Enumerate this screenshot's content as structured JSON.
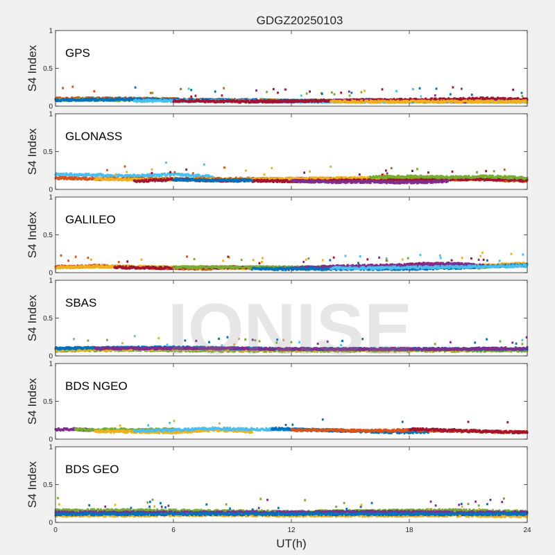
{
  "figure": {
    "title": "GDGZ20250103",
    "xlabel": "UT(h)",
    "watermark": "IONISE"
  },
  "colors": {
    "background": "#f0f0f0",
    "axes_face": "#ffffff",
    "palette": [
      "#0072BD",
      "#D95319",
      "#EDB120",
      "#7E2F8E",
      "#77AC30",
      "#4DBEEE",
      "#A2142F"
    ]
  },
  "chart_data": [
    {
      "type": "scatter",
      "panel_label": "GPS",
      "ylabel": "S4 Index",
      "xlim": [
        0,
        24
      ],
      "ylim": [
        0,
        1
      ],
      "xticks": [
        0,
        6,
        12,
        18,
        24
      ],
      "yticks": [
        0,
        0.5,
        1
      ],
      "series": [
        {
          "color": "#D95319",
          "x": [
            0,
            2,
            4,
            6,
            8,
            10,
            12
          ],
          "y": [
            0.1,
            0.1,
            0.1,
            0.09,
            0.08,
            0.08,
            0.07
          ]
        },
        {
          "color": "#77AC30",
          "x": [
            0,
            1.5,
            3,
            5,
            8,
            12,
            16,
            20,
            24
          ],
          "y": [
            0.08,
            0.09,
            0.08,
            0.09,
            0.07,
            0.07,
            0.07,
            0.07,
            0.07
          ]
        },
        {
          "color": "#0072BD",
          "x": [
            0,
            4,
            8,
            12,
            16,
            20,
            24
          ],
          "y": [
            0.08,
            0.09,
            0.08,
            0.07,
            0.06,
            0.07,
            0.06
          ]
        },
        {
          "color": "#4DBEEE",
          "x": [
            4,
            8,
            12,
            16,
            20,
            24
          ],
          "y": [
            0.07,
            0.07,
            0.06,
            0.06,
            0.06,
            0.06
          ]
        },
        {
          "color": "#7E2F8E",
          "x": [
            10,
            13,
            16,
            18,
            21
          ],
          "y": [
            0.06,
            0.07,
            0.08,
            0.07,
            0.06
          ]
        },
        {
          "color": "#A2142F",
          "x": [
            6,
            10,
            20,
            22,
            24
          ],
          "y": [
            0.07,
            0.06,
            0.09,
            0.1,
            0.09
          ]
        },
        {
          "color": "#EDB120",
          "x": [
            14,
            16,
            18,
            20,
            24
          ],
          "y": [
            0.06,
            0.06,
            0.06,
            0.06,
            0.06
          ]
        }
      ]
    },
    {
      "type": "scatter",
      "panel_label": "GLONASS",
      "ylabel": "S4 Index",
      "xlim": [
        0,
        24
      ],
      "ylim": [
        0,
        1
      ],
      "xticks": [
        0,
        6,
        12,
        18,
        24
      ],
      "yticks": [
        0,
        0.5,
        1
      ],
      "series": [
        {
          "color": "#4DBEEE",
          "x": [
            0,
            2,
            4,
            6,
            8
          ],
          "y": [
            0.2,
            0.19,
            0.18,
            0.2,
            0.17
          ]
        },
        {
          "color": "#D95319",
          "x": [
            0,
            2,
            4,
            8,
            12,
            16,
            22,
            24
          ],
          "y": [
            0.15,
            0.14,
            0.14,
            0.14,
            0.14,
            0.14,
            0.13,
            0.11
          ]
        },
        {
          "color": "#EDB120",
          "x": [
            2,
            4,
            8,
            12,
            16,
            18
          ],
          "y": [
            0.14,
            0.13,
            0.13,
            0.14,
            0.15,
            0.13
          ]
        },
        {
          "color": "#A2142F",
          "x": [
            4,
            6,
            8,
            12,
            20,
            22,
            24
          ],
          "y": [
            0.11,
            0.13,
            0.12,
            0.11,
            0.13,
            0.14,
            0.12
          ]
        },
        {
          "color": "#0072BD",
          "x": [
            6,
            8,
            10
          ],
          "y": [
            0.13,
            0.12,
            0.12
          ]
        },
        {
          "color": "#7E2F8E",
          "x": [
            12,
            14,
            16,
            18,
            20
          ],
          "y": [
            0.11,
            0.1,
            0.1,
            0.09,
            0.11
          ]
        },
        {
          "color": "#77AC30",
          "x": [
            16,
            18,
            20,
            22,
            24
          ],
          "y": [
            0.16,
            0.17,
            0.16,
            0.17,
            0.15
          ]
        }
      ]
    },
    {
      "type": "scatter",
      "panel_label": "GALILEO",
      "ylabel": "S4 Index",
      "xlim": [
        0,
        24
      ],
      "ylim": [
        0,
        1
      ],
      "xticks": [
        0,
        6,
        12,
        18,
        24
      ],
      "yticks": [
        0,
        0.5,
        1
      ],
      "series": [
        {
          "color": "#D95319",
          "x": [
            0,
            1,
            2,
            3,
            4,
            6,
            8
          ],
          "y": [
            0.08,
            0.08,
            0.09,
            0.08,
            0.07,
            0.06,
            0.05
          ]
        },
        {
          "color": "#EDB120",
          "x": [
            0,
            2,
            4,
            6,
            10,
            12,
            20,
            24
          ],
          "y": [
            0.07,
            0.08,
            0.08,
            0.07,
            0.06,
            0.06,
            0.08,
            0.12
          ]
        },
        {
          "color": "#A2142F",
          "x": [
            3,
            6,
            9,
            12,
            16,
            19,
            22
          ],
          "y": [
            0.07,
            0.06,
            0.07,
            0.06,
            0.07,
            0.12,
            0.08
          ]
        },
        {
          "color": "#77AC30",
          "x": [
            6,
            10,
            14,
            18,
            22
          ],
          "y": [
            0.07,
            0.07,
            0.07,
            0.07,
            0.07
          ]
        },
        {
          "color": "#7E2F8E",
          "x": [
            12,
            14,
            16,
            18,
            20,
            22
          ],
          "y": [
            0.06,
            0.08,
            0.09,
            0.1,
            0.12,
            0.09
          ]
        },
        {
          "color": "#0072BD",
          "x": [
            10,
            14,
            18,
            20,
            24
          ],
          "y": [
            0.05,
            0.05,
            0.05,
            0.06,
            0.1
          ]
        },
        {
          "color": "#4DBEEE",
          "x": [
            14,
            16,
            18,
            22,
            24
          ],
          "y": [
            0.06,
            0.06,
            0.07,
            0.08,
            0.09
          ]
        }
      ]
    },
    {
      "type": "scatter",
      "panel_label": "SBAS",
      "ylabel": "S4 Index",
      "xlim": [
        0,
        24
      ],
      "ylim": [
        0,
        1
      ],
      "xticks": [
        0,
        6,
        12,
        18,
        24
      ],
      "yticks": [
        0,
        0.5,
        1
      ],
      "series": [
        {
          "color": "#4DBEEE",
          "x": [
            0,
            4,
            8,
            12,
            16,
            20,
            24
          ],
          "y": [
            0.09,
            0.1,
            0.09,
            0.08,
            0.08,
            0.08,
            0.08
          ]
        },
        {
          "color": "#77AC30",
          "x": [
            0,
            4,
            8,
            12,
            16,
            20,
            24
          ],
          "y": [
            0.07,
            0.08,
            0.07,
            0.07,
            0.07,
            0.07,
            0.07
          ]
        },
        {
          "color": "#EDB120",
          "x": [
            0,
            6,
            12,
            18,
            24
          ],
          "y": [
            0.08,
            0.09,
            0.08,
            0.08,
            0.09
          ]
        },
        {
          "color": "#0072BD",
          "x": [
            0,
            6,
            12,
            18,
            24
          ],
          "y": [
            0.1,
            0.11,
            0.09,
            0.09,
            0.09
          ]
        },
        {
          "color": "#7E2F8E",
          "x": [
            2,
            8,
            14,
            20,
            24
          ],
          "y": [
            0.1,
            0.1,
            0.09,
            0.09,
            0.1
          ]
        }
      ]
    },
    {
      "type": "scatter",
      "panel_label": "BDS NGEO",
      "ylabel": "S4 Index",
      "xlim": [
        0,
        24
      ],
      "ylim": [
        0,
        1
      ],
      "xticks": [
        0,
        6,
        12,
        18,
        24
      ],
      "yticks": [
        0,
        0.5,
        1
      ],
      "series": [
        {
          "color": "#7E2F8E",
          "x": [
            0,
            1,
            2
          ],
          "y": [
            0.13,
            0.13,
            0.12
          ]
        },
        {
          "color": "#77AC30",
          "x": [
            1,
            2,
            3,
            4,
            6
          ],
          "y": [
            0.13,
            0.12,
            0.13,
            0.12,
            0.13
          ]
        },
        {
          "color": "#EDB120",
          "x": [
            2,
            4,
            6,
            8,
            10
          ],
          "y": [
            0.1,
            0.1,
            0.09,
            0.12,
            0.1
          ]
        },
        {
          "color": "#4DBEEE",
          "x": [
            4,
            6,
            8,
            10,
            12
          ],
          "y": [
            0.11,
            0.12,
            0.14,
            0.13,
            0.13
          ]
        },
        {
          "color": "#0072BD",
          "x": [
            11,
            12,
            16,
            18,
            19
          ],
          "y": [
            0.14,
            0.13,
            0.1,
            0.09,
            0.1
          ]
        },
        {
          "color": "#D95319",
          "x": [
            12,
            14,
            16,
            18,
            20,
            24
          ],
          "y": [
            0.12,
            0.12,
            0.11,
            0.12,
            0.11,
            0.09
          ]
        },
        {
          "color": "#A2142F",
          "x": [
            18,
            20,
            22,
            24
          ],
          "y": [
            0.13,
            0.12,
            0.1,
            0.09
          ]
        }
      ]
    },
    {
      "type": "scatter",
      "panel_label": "BDS GEO",
      "ylabel": "S4 Index",
      "xlim": [
        0,
        24
      ],
      "ylim": [
        0,
        1
      ],
      "xticks": [
        0,
        6,
        12,
        18,
        24
      ],
      "yticks": [
        0,
        0.5,
        1
      ],
      "series": [
        {
          "color": "#77AC30",
          "x": [
            0,
            4,
            8,
            12,
            16,
            20,
            24
          ],
          "y": [
            0.16,
            0.16,
            0.15,
            0.14,
            0.15,
            0.16,
            0.14
          ]
        },
        {
          "color": "#7E2F8E",
          "x": [
            0,
            4,
            8,
            12,
            16,
            20,
            24
          ],
          "y": [
            0.13,
            0.13,
            0.13,
            0.13,
            0.14,
            0.13,
            0.13
          ]
        },
        {
          "color": "#EDB120",
          "x": [
            0,
            4,
            8,
            12,
            16,
            20,
            24
          ],
          "y": [
            0.09,
            0.09,
            0.1,
            0.09,
            0.09,
            0.09,
            0.08
          ]
        },
        {
          "color": "#0072BD",
          "x": [
            0,
            6,
            12,
            18,
            24
          ],
          "y": [
            0.11,
            0.11,
            0.11,
            0.11,
            0.11
          ]
        }
      ]
    }
  ]
}
